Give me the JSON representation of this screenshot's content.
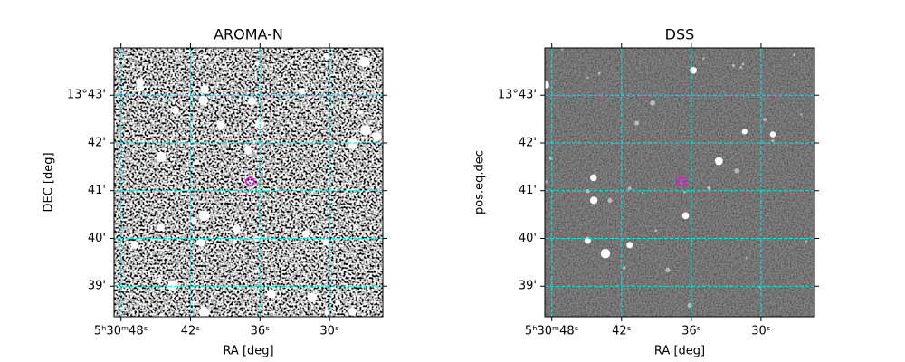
{
  "chart_data": [
    {
      "type": "image",
      "title": "AROMA-N",
      "x_label": "RA [deg]",
      "y_label": "DEC [deg]",
      "xlim": [
        48.6,
        25.4
      ],
      "ylim": [
        38.36,
        43.99
      ],
      "xticks": [
        {
          "value": 48,
          "label": "5ʰ30ᵐ48ˢ"
        },
        {
          "value": 42,
          "label": "42ˢ"
        },
        {
          "value": 36,
          "label": "36ˢ"
        },
        {
          "value": 30,
          "label": "30ˢ"
        }
      ],
      "yticks": [
        {
          "value": 39,
          "label": "39'"
        },
        {
          "value": 40,
          "label": "40'"
        },
        {
          "value": 41,
          "label": "41'"
        },
        {
          "value": 42,
          "label": "42'"
        },
        {
          "value": 43,
          "label": "13°43'"
        }
      ],
      "grid": true,
      "grid_color": "#00e5e5",
      "marker": {
        "x": 36.86,
        "y": 41.19,
        "color": "#ff00ff"
      }
    },
    {
      "type": "image",
      "title": "DSS",
      "x_label": "RA [deg]",
      "y_label": "pos.eq.dec",
      "xlim": [
        48.6,
        25.4
      ],
      "ylim": [
        38.36,
        43.99
      ],
      "xticks": [
        {
          "value": 48,
          "label": "5ʰ30ᵐ48ˢ"
        },
        {
          "value": 42,
          "label": "42ˢ"
        },
        {
          "value": 36,
          "label": "36ˢ"
        },
        {
          "value": 30,
          "label": "30ˢ"
        }
      ],
      "yticks": [
        {
          "value": 39,
          "label": "39'"
        },
        {
          "value": 40,
          "label": "40'"
        },
        {
          "value": 41,
          "label": "41'"
        },
        {
          "value": 42,
          "label": "42'"
        },
        {
          "value": 43,
          "label": "13°43'"
        }
      ],
      "grid": true,
      "grid_color": "#00e5e5",
      "marker": {
        "x": 36.86,
        "y": 41.19,
        "color": "#ff00ff"
      }
    }
  ]
}
